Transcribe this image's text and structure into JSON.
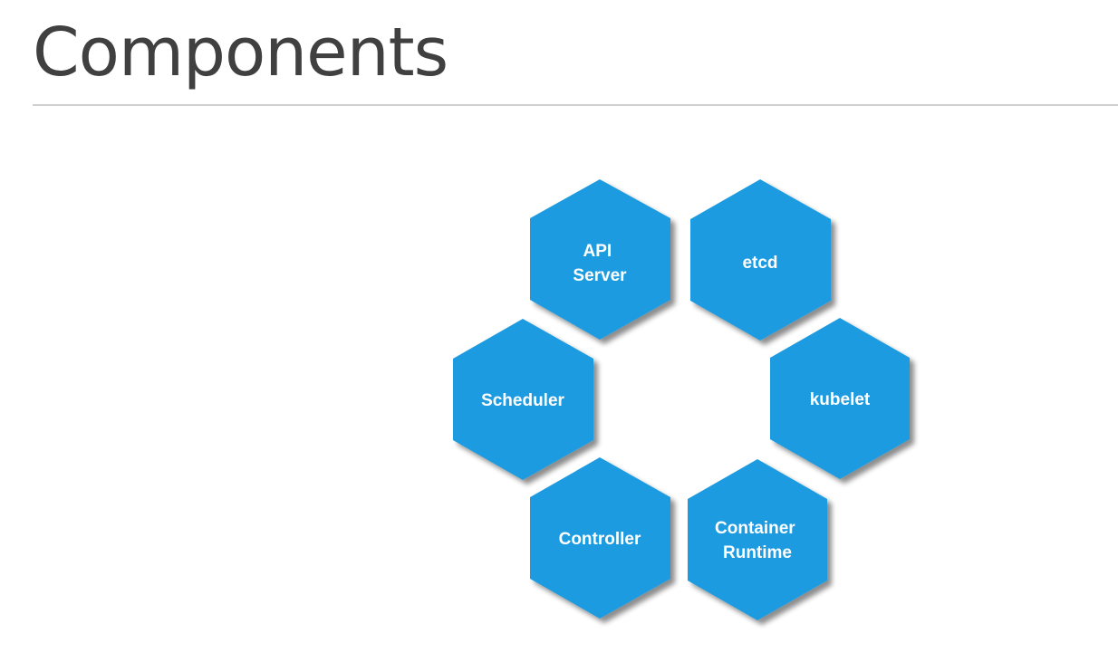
{
  "slide": {
    "title": "Components"
  },
  "diagram": {
    "hex_color": "#1e9be0",
    "shadow_color": "#9a9a9a",
    "text_color": "#ffffff",
    "components": [
      {
        "id": "api-server",
        "lines": [
          "API",
          "Server"
        ]
      },
      {
        "id": "etcd",
        "lines": [
          "etcd"
        ]
      },
      {
        "id": "scheduler",
        "lines": [
          "Scheduler"
        ]
      },
      {
        "id": "kubelet",
        "lines": [
          "kubelet"
        ]
      },
      {
        "id": "controller",
        "lines": [
          "Controller"
        ]
      },
      {
        "id": "container-runtime",
        "lines": [
          "Container",
          "Runtime"
        ]
      }
    ]
  }
}
